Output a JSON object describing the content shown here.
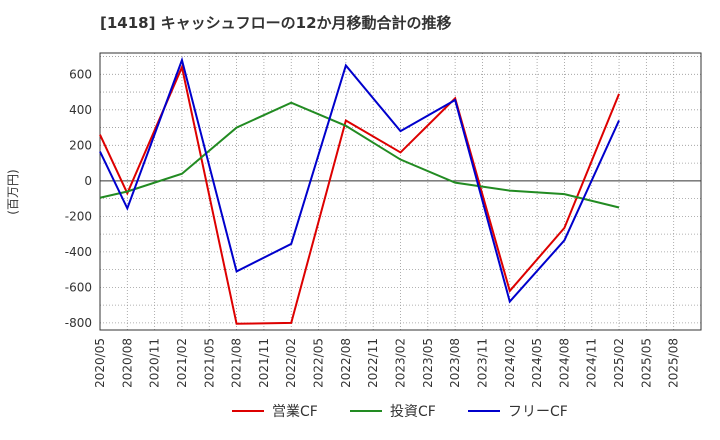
{
  "chart_data": {
    "type": "line",
    "title": "[1418]  キャッシュフローの12か月移動合計の推移",
    "ylabel": "(百万円)",
    "xlabel": "",
    "ylim": [
      -840,
      720
    ],
    "yticks": [
      600,
      400,
      200,
      0,
      -200,
      -400,
      -600,
      -800
    ],
    "categories": [
      "2020/05",
      "2020/08",
      "2020/11",
      "2021/02",
      "2021/05",
      "2021/08",
      "2021/11",
      "2022/02",
      "2022/05",
      "2022/08",
      "2022/11",
      "2023/02",
      "2023/05",
      "2023/08",
      "2023/11",
      "2024/02",
      "2024/05",
      "2024/08",
      "2024/11",
      "2025/02",
      "2025/05",
      "2025/08"
    ],
    "grid": true,
    "legend_position": "bottom",
    "series": [
      {
        "name": "営業CF",
        "color": "#dd0000",
        "values": [
          260,
          -70,
          null,
          640,
          null,
          -805,
          null,
          -800,
          null,
          340,
          null,
          160,
          null,
          465,
          null,
          -620,
          null,
          -265,
          null,
          490,
          null,
          null
        ]
      },
      {
        "name": "投資CF",
        "color": "#228b22",
        "values": [
          -95,
          -60,
          null,
          40,
          null,
          300,
          null,
          440,
          null,
          310,
          null,
          120,
          null,
          -10,
          null,
          -55,
          null,
          -75,
          null,
          -150,
          null,
          null
        ]
      },
      {
        "name": "フリーCF",
        "color": "#0000cc",
        "values": [
          165,
          -155,
          null,
          680,
          null,
          -510,
          null,
          -355,
          null,
          650,
          null,
          280,
          null,
          455,
          null,
          -680,
          null,
          -335,
          null,
          340,
          null,
          null
        ]
      }
    ]
  }
}
